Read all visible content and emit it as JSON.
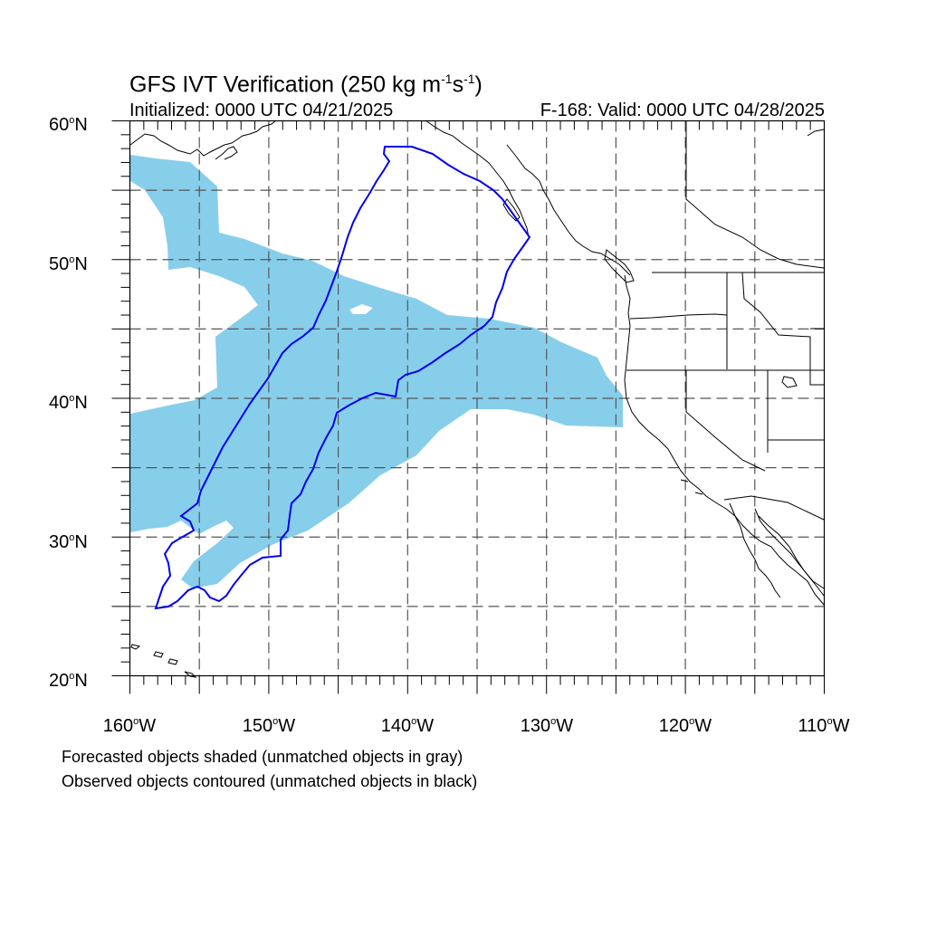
{
  "title": {
    "prefix": "GFS IVT Verification (250 kg m",
    "exp1": "-1",
    "mid": "s",
    "exp2": "-1",
    "suffix": ")"
  },
  "initialized": "Initialized: 0000 UTC 04/21/2025",
  "valid": "F-168: Valid: 0000 UTC 04/28/2025",
  "lat_labels": [
    {
      "value": "60",
      "suffix": "N"
    },
    {
      "value": "50",
      "suffix": "N"
    },
    {
      "value": "40",
      "suffix": "N"
    },
    {
      "value": "30",
      "suffix": "N"
    },
    {
      "value": "20",
      "suffix": "N"
    }
  ],
  "lon_labels": [
    {
      "value": "160",
      "suffix": "W"
    },
    {
      "value": "150",
      "suffix": "W"
    },
    {
      "value": "140",
      "suffix": "W"
    },
    {
      "value": "130",
      "suffix": "W"
    },
    {
      "value": "120",
      "suffix": "W"
    },
    {
      "value": "110",
      "suffix": "W"
    }
  ],
  "degree_symbol": "o",
  "notes": [
    "Forecasted objects shaded (unmatched objects in gray)",
    "Observed objects contoured (unmatched objects in black)"
  ],
  "colors": {
    "forecast_fill": "#87CEEB",
    "observed_contour": "#0000EE",
    "coastline": "#000000",
    "gridline": "#555555"
  },
  "map_extent": {
    "lon_min": -160,
    "lon_max": -110,
    "lat_min": 20,
    "lat_max": 60
  }
}
